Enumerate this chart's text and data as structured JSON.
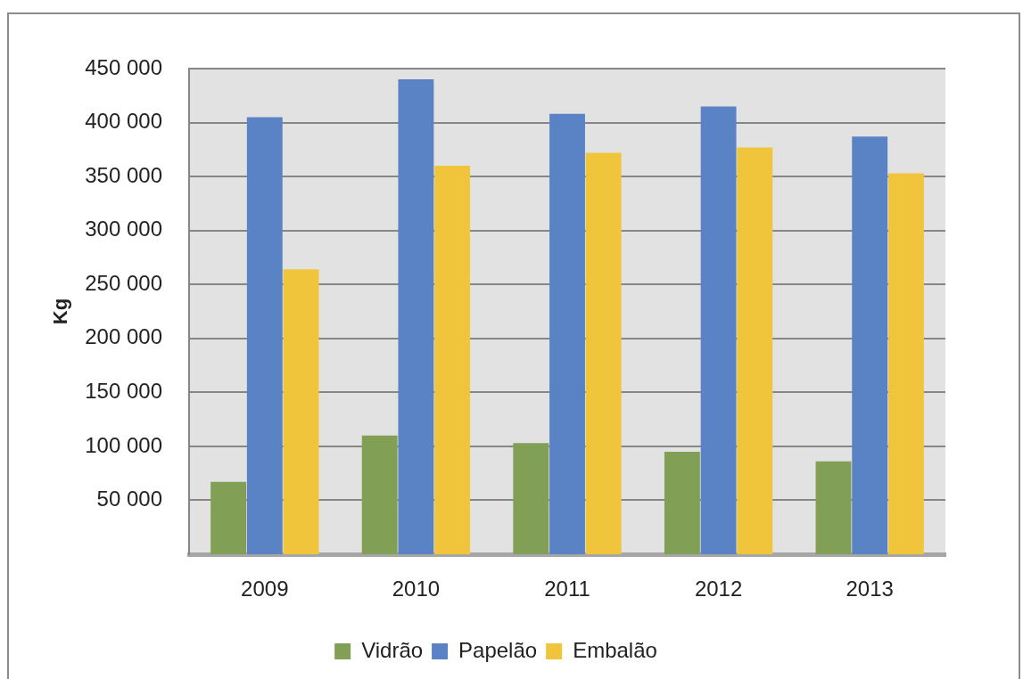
{
  "chart_data": {
    "type": "bar",
    "ylabel": "Kg",
    "categories": [
      "2009",
      "2010",
      "2011",
      "2012",
      "2013"
    ],
    "series": [
      {
        "name": "Vidrão",
        "color": "#82a055",
        "values": [
          67000,
          110000,
          103000,
          95000,
          86000
        ]
      },
      {
        "name": "Papelão",
        "color": "#5a83c5",
        "values": [
          405000,
          440000,
          408000,
          415000,
          387000
        ]
      },
      {
        "name": "Embalão",
        "color": "#f0c53c",
        "values": [
          264000,
          360000,
          372000,
          377000,
          353000
        ]
      }
    ],
    "ylim": [
      0,
      450000
    ],
    "yticks": [
      {
        "value": 50000,
        "label": "50 000"
      },
      {
        "value": 100000,
        "label": "100 000"
      },
      {
        "value": 150000,
        "label": "150 000"
      },
      {
        "value": 200000,
        "label": "200 000"
      },
      {
        "value": 250000,
        "label": "250 000"
      },
      {
        "value": 300000,
        "label": "300 000"
      },
      {
        "value": 350000,
        "label": "350 000"
      },
      {
        "value": 400000,
        "label": "400 000"
      },
      {
        "value": 450000,
        "label": "450 000"
      }
    ],
    "grid": "y",
    "legend": "bottom"
  }
}
